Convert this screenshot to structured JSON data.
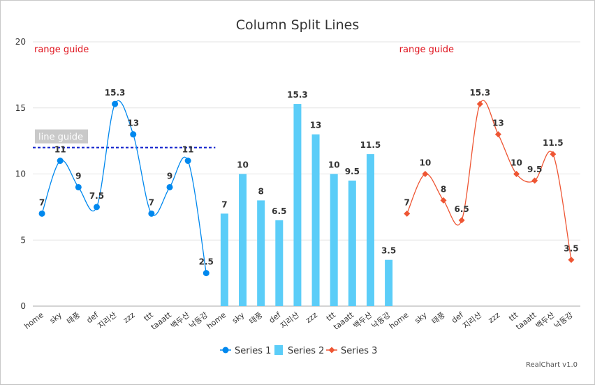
{
  "chart_data": {
    "type": "line",
    "title": "Column Split Lines",
    "categories": [
      "home",
      "sky",
      "태풍",
      "def",
      "지리산",
      "zzz",
      "ttt",
      "taaatt",
      "백두산",
      "낙동강"
    ],
    "ylim": [
      0,
      20
    ],
    "yticks": [
      0,
      5,
      10,
      15,
      20
    ],
    "grid": true,
    "legend_position": "bottom",
    "series": [
      {
        "name": "Series 1",
        "type": "line",
        "curve": "spline",
        "marker": "circle",
        "color": "#0088ee",
        "values": [
          7,
          11,
          9,
          7.5,
          15.3,
          13,
          7,
          9,
          11,
          2.5
        ]
      },
      {
        "name": "Series 2",
        "type": "bar",
        "color": "#5bcdf8",
        "values": [
          7,
          10,
          8,
          6.5,
          15.3,
          13,
          10,
          9.5,
          11.5,
          3.5
        ]
      },
      {
        "name": "Series 3",
        "type": "line",
        "curve": "spline",
        "marker": "diamond",
        "color": "#ee5533",
        "values": [
          7,
          10,
          8,
          6.5,
          15.3,
          13,
          10,
          9.5,
          11.5,
          3.5
        ]
      }
    ],
    "guides": {
      "range_label": "range guide",
      "line_label": "line guide",
      "line_value": 12
    }
  },
  "credit": "RealChart v1.0"
}
